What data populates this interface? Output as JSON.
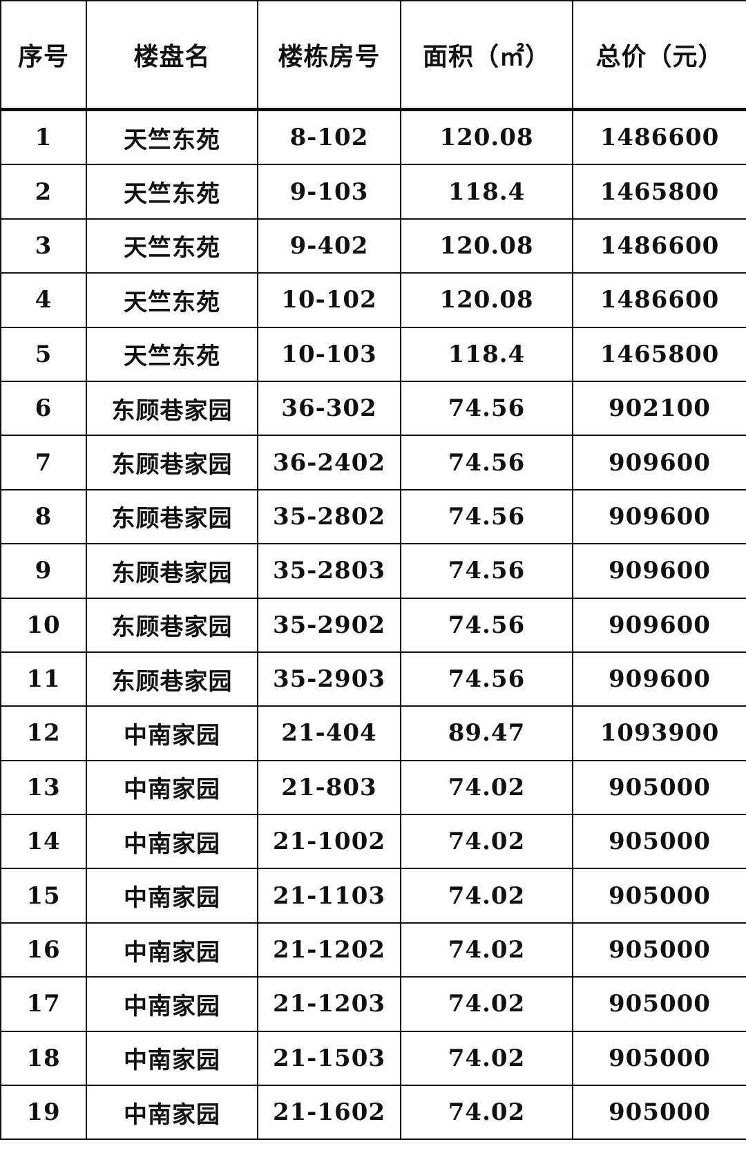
{
  "table": {
    "headers": [
      "序号",
      "楼盘名",
      "楼栋房号",
      "面积（㎡）",
      "总价（元）"
    ],
    "rows": [
      [
        "1",
        "天竺东苑",
        "8-102",
        "120.08",
        "1486600"
      ],
      [
        "2",
        "天竺东苑",
        "9-103",
        "118.4",
        "1465800"
      ],
      [
        "3",
        "天竺东苑",
        "9-402",
        "120.08",
        "1486600"
      ],
      [
        "4",
        "天竺东苑",
        "10-102",
        "120.08",
        "1486600"
      ],
      [
        "5",
        "天竺东苑",
        "10-103",
        "118.4",
        "1465800"
      ],
      [
        "6",
        "东顾巷家园",
        "36-302",
        "74.56",
        "902100"
      ],
      [
        "7",
        "东顾巷家园",
        "36-2402",
        "74.56",
        "909600"
      ],
      [
        "8",
        "东顾巷家园",
        "35-2802",
        "74.56",
        "909600"
      ],
      [
        "9",
        "东顾巷家园",
        "35-2803",
        "74.56",
        "909600"
      ],
      [
        "10",
        "东顾巷家园",
        "35-2902",
        "74.56",
        "909600"
      ],
      [
        "11",
        "东顾巷家园",
        "35-2903",
        "74.56",
        "909600"
      ],
      [
        "12",
        "中南家园",
        "21-404",
        "89.47",
        "1093900"
      ],
      [
        "13",
        "中南家园",
        "21-803",
        "74.02",
        "905000"
      ],
      [
        "14",
        "中南家园",
        "21-1002",
        "74.02",
        "905000"
      ],
      [
        "15",
        "中南家园",
        "21-1103",
        "74.02",
        "905000"
      ],
      [
        "16",
        "中南家园",
        "21-1202",
        "74.02",
        "905000"
      ],
      [
        "17",
        "中南家园",
        "21-1203",
        "74.02",
        "905000"
      ],
      [
        "18",
        "中南家园",
        "21-1503",
        "74.02",
        "905000"
      ],
      [
        "19",
        "中南家园",
        "21-1602",
        "74.02",
        "905000"
      ]
    ]
  }
}
